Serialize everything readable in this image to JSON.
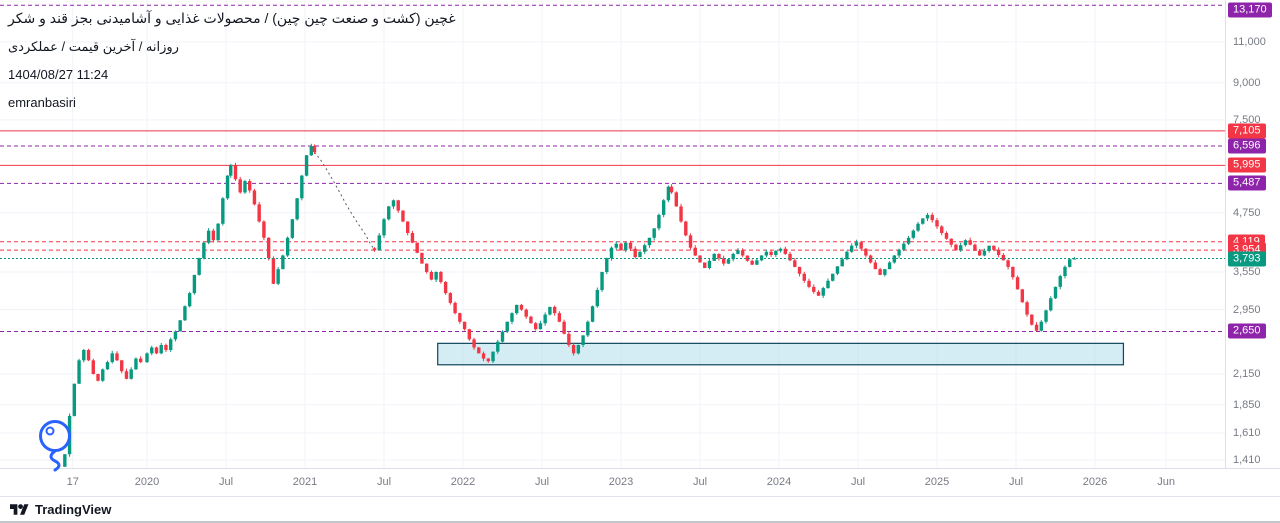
{
  "header": {
    "title": "غچین (کشت و صنعت چین چین) / محصولات غذایی و آشامیدنی بجز قند و شکر",
    "subtitle": "روزانه / آخرین قیمت / عملکردی",
    "datetime": "1404/08/27 11:24",
    "author": "emranbasiri"
  },
  "footer": {
    "brand": "TradingView",
    "logo_icon": "tradingview-logo"
  },
  "chart_data": {
    "type": "candlestick",
    "title": "غچین (کشت و صنعت چین چین) — روزانه",
    "scale": "log",
    "colors": {
      "up": "#089981",
      "down": "#f23645",
      "grid": "#f0f3fa",
      "gap_line": "#555b66"
    },
    "y_axis": {
      "range": [
        1410,
        13170
      ],
      "ticks": [
        {
          "label": "11,000",
          "value": 11000
        },
        {
          "label": "9,000",
          "value": 9000
        },
        {
          "label": "7,500",
          "value": 7500
        },
        {
          "label": "4,750",
          "value": 4750
        },
        {
          "label": "3,550",
          "value": 3550
        },
        {
          "label": "2,950",
          "value": 2950
        },
        {
          "label": "2,150",
          "value": 2150
        },
        {
          "label": "1,850",
          "value": 1850
        },
        {
          "label": "1,610",
          "value": 1610
        },
        {
          "label": "1,410",
          "value": 1410
        }
      ]
    },
    "x_axis": {
      "ticks": [
        {
          "label": "17",
          "t": 2019.53
        },
        {
          "label": "2020",
          "t": 2020.0
        },
        {
          "label": "Jul",
          "t": 2020.5
        },
        {
          "label": "2021",
          "t": 2021.0
        },
        {
          "label": "Jul",
          "t": 2021.5
        },
        {
          "label": "2022",
          "t": 2022.0
        },
        {
          "label": "Jul",
          "t": 2022.5
        },
        {
          "label": "2023",
          "t": 2023.0
        },
        {
          "label": "Jul",
          "t": 2023.5
        },
        {
          "label": "2024",
          "t": 2024.0
        },
        {
          "label": "Jul",
          "t": 2024.5
        },
        {
          "label": "2025",
          "t": 2025.0
        },
        {
          "label": "Jul",
          "t": 2025.5
        },
        {
          "label": "2026",
          "t": 2026.0
        },
        {
          "label": "Jun",
          "t": 2026.45
        }
      ]
    },
    "levels": [
      {
        "value": 13170,
        "label": "13,170",
        "color": "#8e24aa",
        "style": "dashed"
      },
      {
        "value": 7105,
        "label": "7,105",
        "color": "#f23645",
        "style": "solid"
      },
      {
        "value": 6596,
        "label": "6,596",
        "color": "#8e24aa",
        "style": "dashed"
      },
      {
        "value": 5995,
        "label": "5,995",
        "color": "#f23645",
        "style": "solid"
      },
      {
        "value": 5487,
        "label": "5,487",
        "color": "#8e24aa",
        "style": "dashed"
      },
      {
        "value": 4119,
        "label": "4,119",
        "color": "#f23645",
        "style": "dashed"
      },
      {
        "value": 3954,
        "label": "3,954",
        "color": "#f23645",
        "style": "dashed"
      },
      {
        "value": 2650,
        "label": "2,650",
        "color": "#8e24aa",
        "style": "dashed"
      }
    ],
    "last_price": {
      "value": 3793,
      "label": "3,793",
      "color": "#089981"
    },
    "rectangle": {
      "t1": 2021.84,
      "t2": 2026.18,
      "price_top": 2500,
      "price_bottom": 2250,
      "fill": "#9fd8e8",
      "fill_opacity": 0.45,
      "border": "#10455a"
    },
    "gap_line": [
      [
        2021.06,
        6400
      ],
      [
        2021.1,
        6150
      ],
      [
        2021.14,
        5850
      ],
      [
        2021.18,
        5550
      ],
      [
        2021.22,
        5250
      ],
      [
        2021.26,
        4950
      ],
      [
        2021.3,
        4700
      ],
      [
        2021.34,
        4480
      ],
      [
        2021.38,
        4280
      ],
      [
        2021.41,
        4100
      ],
      [
        2021.44,
        3950
      ]
    ],
    "series": [
      {
        "name": "غچین close",
        "points": [
          [
            2019.48,
            1450
          ],
          [
            2019.51,
            1750
          ],
          [
            2019.54,
            2050
          ],
          [
            2019.57,
            2300
          ],
          [
            2019.6,
            2420
          ],
          [
            2019.63,
            2300
          ],
          [
            2019.66,
            2150
          ],
          [
            2019.69,
            2080
          ],
          [
            2019.72,
            2200
          ],
          [
            2019.75,
            2280
          ],
          [
            2019.78,
            2380
          ],
          [
            2019.81,
            2300
          ],
          [
            2019.84,
            2180
          ],
          [
            2019.87,
            2100
          ],
          [
            2019.9,
            2200
          ],
          [
            2019.93,
            2320
          ],
          [
            2019.96,
            2280
          ],
          [
            2020.0,
            2380
          ],
          [
            2020.03,
            2450
          ],
          [
            2020.06,
            2380
          ],
          [
            2020.09,
            2480
          ],
          [
            2020.12,
            2420
          ],
          [
            2020.15,
            2550
          ],
          [
            2020.18,
            2650
          ],
          [
            2020.21,
            2800
          ],
          [
            2020.24,
            3000
          ],
          [
            2020.27,
            3200
          ],
          [
            2020.3,
            3500
          ],
          [
            2020.33,
            3800
          ],
          [
            2020.36,
            4100
          ],
          [
            2020.39,
            4350
          ],
          [
            2020.42,
            4150
          ],
          [
            2020.45,
            4500
          ],
          [
            2020.48,
            5100
          ],
          [
            2020.51,
            5700
          ],
          [
            2020.53,
            5995
          ],
          [
            2020.56,
            5600
          ],
          [
            2020.59,
            5250
          ],
          [
            2020.62,
            5550
          ],
          [
            2020.65,
            5300
          ],
          [
            2020.68,
            4950
          ],
          [
            2020.71,
            4550
          ],
          [
            2020.74,
            4200
          ],
          [
            2020.77,
            3800
          ],
          [
            2020.8,
            3350
          ],
          [
            2020.83,
            3600
          ],
          [
            2020.86,
            3850
          ],
          [
            2020.89,
            4200
          ],
          [
            2020.92,
            4600
          ],
          [
            2020.95,
            5100
          ],
          [
            2020.98,
            5700
          ],
          [
            2021.01,
            6300
          ],
          [
            2021.04,
            6596
          ],
          [
            2021.06,
            6400
          ],
          [
            2021.44,
            3950
          ],
          [
            2021.47,
            4250
          ],
          [
            2021.5,
            4600
          ],
          [
            2021.53,
            4900
          ],
          [
            2021.56,
            5050
          ],
          [
            2021.59,
            4800
          ],
          [
            2021.62,
            4550
          ],
          [
            2021.65,
            4300
          ],
          [
            2021.68,
            4100
          ],
          [
            2021.71,
            3900
          ],
          [
            2021.74,
            3700
          ],
          [
            2021.77,
            3550
          ],
          [
            2021.8,
            3420
          ],
          [
            2021.83,
            3550
          ],
          [
            2021.86,
            3380
          ],
          [
            2021.89,
            3200
          ],
          [
            2021.92,
            3050
          ],
          [
            2021.95,
            2900
          ],
          [
            2021.98,
            2780
          ],
          [
            2022.01,
            2680
          ],
          [
            2022.04,
            2550
          ],
          [
            2022.07,
            2450
          ],
          [
            2022.1,
            2380
          ],
          [
            2022.13,
            2320
          ],
          [
            2022.16,
            2290
          ],
          [
            2022.19,
            2400
          ],
          [
            2022.22,
            2520
          ],
          [
            2022.25,
            2650
          ],
          [
            2022.28,
            2780
          ],
          [
            2022.31,
            2900
          ],
          [
            2022.34,
            3020
          ],
          [
            2022.37,
            2950
          ],
          [
            2022.4,
            2850
          ],
          [
            2022.43,
            2760
          ],
          [
            2022.46,
            2680
          ],
          [
            2022.49,
            2760
          ],
          [
            2022.52,
            2880
          ],
          [
            2022.55,
            2990
          ],
          [
            2022.58,
            2900
          ],
          [
            2022.61,
            2780
          ],
          [
            2022.64,
            2620
          ],
          [
            2022.67,
            2480
          ],
          [
            2022.7,
            2380
          ],
          [
            2022.73,
            2480
          ],
          [
            2022.76,
            2600
          ],
          [
            2022.79,
            2780
          ],
          [
            2022.82,
            3000
          ],
          [
            2022.85,
            3250
          ],
          [
            2022.88,
            3550
          ],
          [
            2022.91,
            3800
          ],
          [
            2022.94,
            4000
          ],
          [
            2022.97,
            4080
          ],
          [
            2023.0,
            3950
          ],
          [
            2023.03,
            4100
          ],
          [
            2023.06,
            3980
          ],
          [
            2023.09,
            3820
          ],
          [
            2023.12,
            3920
          ],
          [
            2023.15,
            4050
          ],
          [
            2023.18,
            4200
          ],
          [
            2023.21,
            4400
          ],
          [
            2023.24,
            4700
          ],
          [
            2023.27,
            5050
          ],
          [
            2023.3,
            5400
          ],
          [
            2023.32,
            5250
          ],
          [
            2023.35,
            4900
          ],
          [
            2023.38,
            4550
          ],
          [
            2023.41,
            4250
          ],
          [
            2023.44,
            4000
          ],
          [
            2023.47,
            3850
          ],
          [
            2023.5,
            3720
          ],
          [
            2023.53,
            3620
          ],
          [
            2023.56,
            3750
          ],
          [
            2023.59,
            3880
          ],
          [
            2023.62,
            3800
          ],
          [
            2023.65,
            3700
          ],
          [
            2023.68,
            3780
          ],
          [
            2023.71,
            3880
          ],
          [
            2023.74,
            3950
          ],
          [
            2023.77,
            3850
          ],
          [
            2023.8,
            3750
          ],
          [
            2023.83,
            3680
          ],
          [
            2023.86,
            3760
          ],
          [
            2023.89,
            3850
          ],
          [
            2023.92,
            3920
          ],
          [
            2023.95,
            3860
          ],
          [
            2023.98,
            3940
          ],
          [
            2024.01,
            3980
          ],
          [
            2024.04,
            3880
          ],
          [
            2024.07,
            3760
          ],
          [
            2024.1,
            3640
          ],
          [
            2024.13,
            3520
          ],
          [
            2024.16,
            3400
          ],
          [
            2024.19,
            3300
          ],
          [
            2024.22,
            3220
          ],
          [
            2024.25,
            3160
          ],
          [
            2024.28,
            3280
          ],
          [
            2024.31,
            3400
          ],
          [
            2024.34,
            3520
          ],
          [
            2024.37,
            3650
          ],
          [
            2024.4,
            3780
          ],
          [
            2024.43,
            3920
          ],
          [
            2024.46,
            4040
          ],
          [
            2024.49,
            4110
          ],
          [
            2024.52,
            3980
          ],
          [
            2024.55,
            3850
          ],
          [
            2024.58,
            3720
          ],
          [
            2024.61,
            3600
          ],
          [
            2024.64,
            3500
          ],
          [
            2024.67,
            3600
          ],
          [
            2024.7,
            3720
          ],
          [
            2024.73,
            3850
          ],
          [
            2024.76,
            3960
          ],
          [
            2024.79,
            4080
          ],
          [
            2024.82,
            4200
          ],
          [
            2024.85,
            4350
          ],
          [
            2024.88,
            4500
          ],
          [
            2024.91,
            4620
          ],
          [
            2024.94,
            4700
          ],
          [
            2024.97,
            4580
          ],
          [
            2025.0,
            4440
          ],
          [
            2025.03,
            4300
          ],
          [
            2025.06,
            4180
          ],
          [
            2025.09,
            4060
          ],
          [
            2025.12,
            3950
          ],
          [
            2025.15,
            4050
          ],
          [
            2025.18,
            4150
          ],
          [
            2025.21,
            4060
          ],
          [
            2025.24,
            3940
          ],
          [
            2025.27,
            3850
          ],
          [
            2025.3,
            3940
          ],
          [
            2025.33,
            4040
          ],
          [
            2025.36,
            3960
          ],
          [
            2025.39,
            3860
          ],
          [
            2025.42,
            3760
          ],
          [
            2025.45,
            3640
          ],
          [
            2025.48,
            3460
          ],
          [
            2025.51,
            3260
          ],
          [
            2025.54,
            3060
          ],
          [
            2025.57,
            2880
          ],
          [
            2025.6,
            2740
          ],
          [
            2025.63,
            2660
          ],
          [
            2025.66,
            2780
          ],
          [
            2025.69,
            2940
          ],
          [
            2025.72,
            3120
          ],
          [
            2025.75,
            3300
          ],
          [
            2025.78,
            3480
          ],
          [
            2025.81,
            3640
          ],
          [
            2025.84,
            3780
          ],
          [
            2025.87,
            3793
          ]
        ]
      }
    ]
  }
}
